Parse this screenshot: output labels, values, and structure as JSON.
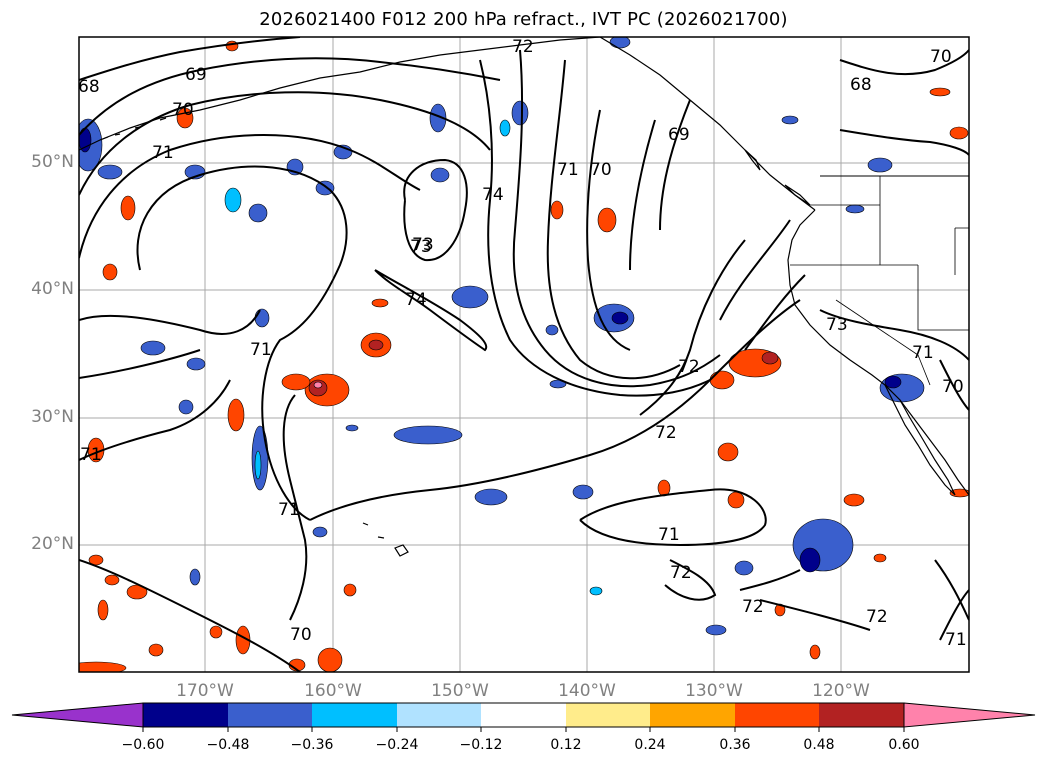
{
  "title": "2026021400 F012 200 hPa refract., IVT PC (2026021700)",
  "map": {
    "type": "contour-map",
    "projection": "PlateCarree",
    "lon_range": [
      -180,
      -110
    ],
    "lat_range": [
      10,
      60
    ],
    "gridlines": true,
    "colors": {
      "land_outline": "#000000",
      "grid": "#a0a0a0",
      "contour": "#000000",
      "axis_label": "#808080"
    },
    "lat_labels": [
      "50°N",
      "40°N",
      "30°N",
      "20°N"
    ],
    "lon_labels": [
      "170°W",
      "160°W",
      "150°W",
      "140°W",
      "130°W",
      "120°W"
    ],
    "contour_labels": [
      "68",
      "69",
      "70",
      "71",
      "72",
      "73",
      "74",
      "73",
      "74",
      "71",
      "70",
      "69",
      "68",
      "70",
      "71",
      "71",
      "72",
      "72",
      "73",
      "71",
      "70",
      "71",
      "72",
      "72",
      "72",
      "71",
      "70",
      "71"
    ]
  },
  "colorbar": {
    "extend": "both",
    "colors": [
      "#9932cc",
      "#00008b",
      "#3a5fcd",
      "#00bfff",
      "#b0e2ff",
      "#ffffff",
      "#ffec8b",
      "#ffa500",
      "#ff4500",
      "#b22222",
      "#ff82ab"
    ],
    "tick_labels": [
      "−0.60",
      "−0.48",
      "−0.36",
      "−0.24",
      "−0.12",
      "0.12",
      "0.24",
      "0.36",
      "0.48",
      "0.60"
    ]
  }
}
